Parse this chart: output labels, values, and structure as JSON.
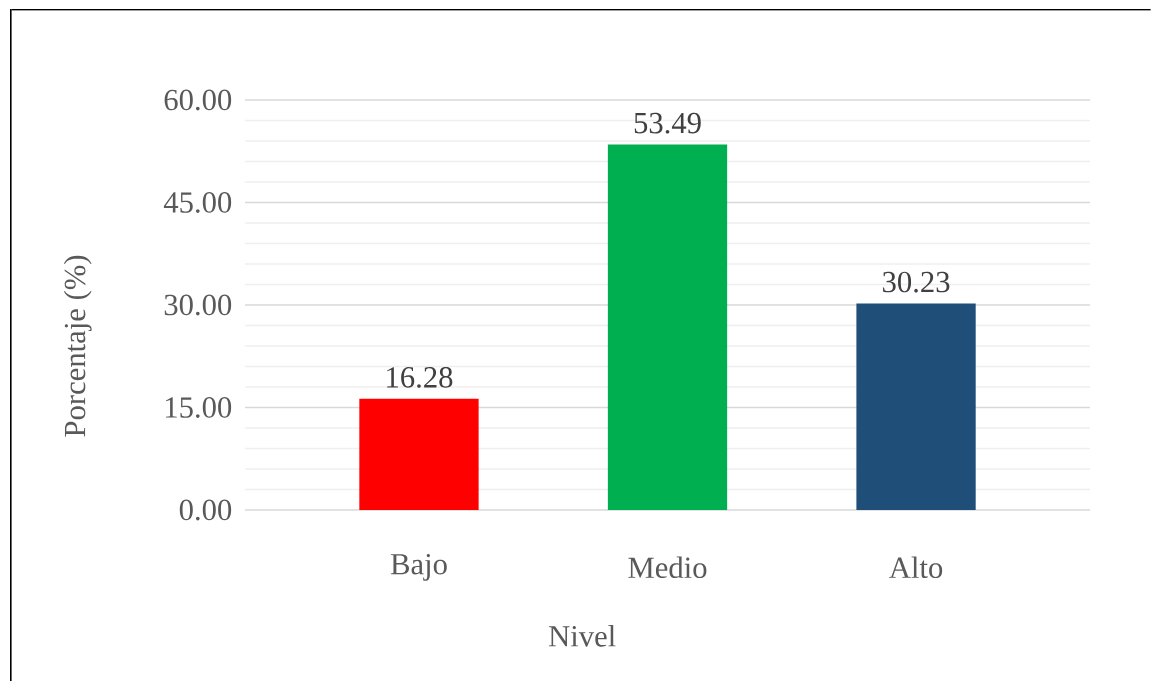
{
  "chart_data": {
    "type": "bar",
    "xlabel": "Nivel",
    "ylabel": "Porcentaje (%)",
    "categories": [
      "Bajo",
      "Medio",
      "Alto"
    ],
    "values": [
      16.28,
      53.49,
      30.23
    ],
    "colors": [
      "#ff0000",
      "#00b050",
      "#1f4e79"
    ],
    "ylim": [
      0,
      60
    ],
    "yticks": [
      {
        "value": 0,
        "label": "0.00"
      },
      {
        "value": 15,
        "label": "15.00"
      },
      {
        "value": 30,
        "label": "30.00"
      },
      {
        "value": 45,
        "label": "45.00"
      },
      {
        "value": 60,
        "label": "60.00"
      }
    ],
    "grid": "y",
    "data_labels": true
  }
}
